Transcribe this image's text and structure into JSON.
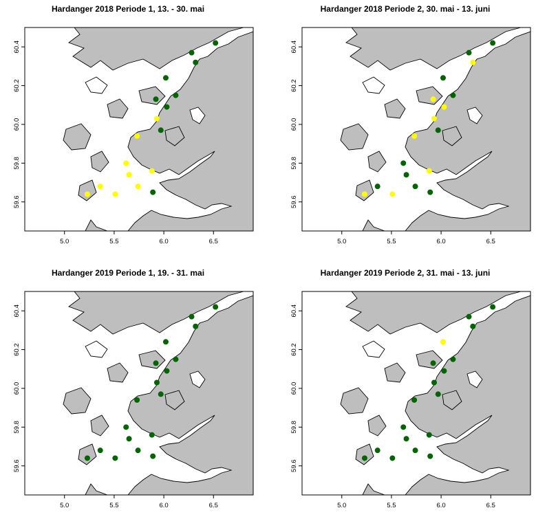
{
  "panels": [
    {
      "title": "Hardanger 2018 Periode 1, 13. - 30. mai",
      "sites": [
        {
          "lon": 6.52,
          "lat": 60.42,
          "color": "#006400"
        },
        {
          "lon": 6.28,
          "lat": 60.37,
          "color": "#006400"
        },
        {
          "lon": 6.32,
          "lat": 60.32,
          "color": "#006400"
        },
        {
          "lon": 6.02,
          "lat": 60.24,
          "color": "#006400"
        },
        {
          "lon": 6.12,
          "lat": 60.15,
          "color": "#006400"
        },
        {
          "lon": 5.92,
          "lat": 60.13,
          "color": "#006400"
        },
        {
          "lon": 6.03,
          "lat": 60.09,
          "color": "#006400"
        },
        {
          "lon": 5.93,
          "lat": 60.03,
          "color": "#ffff00"
        },
        {
          "lon": 5.97,
          "lat": 59.97,
          "color": "#006400"
        },
        {
          "lon": 5.73,
          "lat": 59.94,
          "color": "#ffff00"
        },
        {
          "lon": 5.62,
          "lat": 59.8,
          "color": "#ffff00"
        },
        {
          "lon": 5.88,
          "lat": 59.76,
          "color": "#ffff00"
        },
        {
          "lon": 5.65,
          "lat": 59.74,
          "color": "#ffff00"
        },
        {
          "lon": 5.36,
          "lat": 59.68,
          "color": "#ffff00"
        },
        {
          "lon": 5.74,
          "lat": 59.68,
          "color": "#ffff00"
        },
        {
          "lon": 5.89,
          "lat": 59.65,
          "color": "#006400"
        },
        {
          "lon": 5.23,
          "lat": 59.64,
          "color": "#ffff00"
        },
        {
          "lon": 5.51,
          "lat": 59.64,
          "color": "#ffff00"
        }
      ]
    },
    {
      "title": "Hardanger 2018 Periode 2, 30. mai - 13. juni",
      "sites": [
        {
          "lon": 6.52,
          "lat": 60.42,
          "color": "#006400"
        },
        {
          "lon": 6.28,
          "lat": 60.37,
          "color": "#006400"
        },
        {
          "lon": 6.32,
          "lat": 60.32,
          "color": "#ffff00"
        },
        {
          "lon": 6.02,
          "lat": 60.24,
          "color": "#006400"
        },
        {
          "lon": 6.12,
          "lat": 60.15,
          "color": "#006400"
        },
        {
          "lon": 5.92,
          "lat": 60.13,
          "color": "#ffff00"
        },
        {
          "lon": 6.03,
          "lat": 60.09,
          "color": "#ffff00"
        },
        {
          "lon": 5.93,
          "lat": 60.03,
          "color": "#ffff00"
        },
        {
          "lon": 5.97,
          "lat": 59.97,
          "color": "#006400"
        },
        {
          "lon": 5.73,
          "lat": 59.94,
          "color": "#ffff00"
        },
        {
          "lon": 5.62,
          "lat": 59.8,
          "color": "#006400"
        },
        {
          "lon": 5.88,
          "lat": 59.76,
          "color": "#ffff00"
        },
        {
          "lon": 5.65,
          "lat": 59.74,
          "color": "#006400"
        },
        {
          "lon": 5.36,
          "lat": 59.68,
          "color": "#006400"
        },
        {
          "lon": 5.74,
          "lat": 59.68,
          "color": "#006400"
        },
        {
          "lon": 5.89,
          "lat": 59.65,
          "color": "#006400"
        },
        {
          "lon": 5.23,
          "lat": 59.64,
          "color": "#ffff00"
        },
        {
          "lon": 5.51,
          "lat": 59.64,
          "color": "#ffff00"
        }
      ]
    },
    {
      "title": "Hardanger 2019 Periode 1, 19. - 31. mai",
      "sites": [
        {
          "lon": 6.52,
          "lat": 60.42,
          "color": "#006400"
        },
        {
          "lon": 6.28,
          "lat": 60.37,
          "color": "#006400"
        },
        {
          "lon": 6.32,
          "lat": 60.32,
          "color": "#006400"
        },
        {
          "lon": 6.02,
          "lat": 60.24,
          "color": "#006400"
        },
        {
          "lon": 6.12,
          "lat": 60.15,
          "color": "#006400"
        },
        {
          "lon": 5.92,
          "lat": 60.13,
          "color": "#006400"
        },
        {
          "lon": 6.03,
          "lat": 60.09,
          "color": "#006400"
        },
        {
          "lon": 5.93,
          "lat": 60.03,
          "color": "#006400"
        },
        {
          "lon": 5.97,
          "lat": 59.97,
          "color": "#006400"
        },
        {
          "lon": 5.73,
          "lat": 59.94,
          "color": "#006400"
        },
        {
          "lon": 5.62,
          "lat": 59.8,
          "color": "#006400"
        },
        {
          "lon": 5.88,
          "lat": 59.76,
          "color": "#006400"
        },
        {
          "lon": 5.65,
          "lat": 59.74,
          "color": "#006400"
        },
        {
          "lon": 5.36,
          "lat": 59.68,
          "color": "#006400"
        },
        {
          "lon": 5.74,
          "lat": 59.68,
          "color": "#006400"
        },
        {
          "lon": 5.89,
          "lat": 59.65,
          "color": "#006400"
        },
        {
          "lon": 5.23,
          "lat": 59.64,
          "color": "#006400"
        },
        {
          "lon": 5.51,
          "lat": 59.64,
          "color": "#006400"
        }
      ]
    },
    {
      "title": "Hardanger 2019 Periode 2, 31. mai - 13. juni",
      "sites": [
        {
          "lon": 6.52,
          "lat": 60.42,
          "color": "#006400"
        },
        {
          "lon": 6.28,
          "lat": 60.37,
          "color": "#006400"
        },
        {
          "lon": 6.32,
          "lat": 60.32,
          "color": "#006400"
        },
        {
          "lon": 6.02,
          "lat": 60.24,
          "color": "#ffff00"
        },
        {
          "lon": 6.12,
          "lat": 60.15,
          "color": "#006400"
        },
        {
          "lon": 5.92,
          "lat": 60.13,
          "color": "#006400"
        },
        {
          "lon": 6.03,
          "lat": 60.09,
          "color": "#006400"
        },
        {
          "lon": 5.93,
          "lat": 60.03,
          "color": "#006400"
        },
        {
          "lon": 5.97,
          "lat": 59.97,
          "color": "#006400"
        },
        {
          "lon": 5.73,
          "lat": 59.94,
          "color": "#006400"
        },
        {
          "lon": 5.62,
          "lat": 59.8,
          "color": "#006400"
        },
        {
          "lon": 5.88,
          "lat": 59.76,
          "color": "#006400"
        },
        {
          "lon": 5.65,
          "lat": 59.74,
          "color": "#006400"
        },
        {
          "lon": 5.36,
          "lat": 59.68,
          "color": "#006400"
        },
        {
          "lon": 5.74,
          "lat": 59.68,
          "color": "#006400"
        },
        {
          "lon": 5.89,
          "lat": 59.65,
          "color": "#006400"
        },
        {
          "lon": 5.23,
          "lat": 59.64,
          "color": "#006400"
        },
        {
          "lon": 5.51,
          "lat": 59.64,
          "color": "#006400"
        }
      ]
    }
  ],
  "axes": {
    "x_ticks": [
      "5.0",
      "5.5",
      "6.0",
      "6.5"
    ],
    "y_ticks": [
      "59.6",
      "59.8",
      "60.0",
      "60.2",
      "60.4"
    ],
    "x_values": [
      5.0,
      5.5,
      6.0,
      6.5
    ],
    "y_values": [
      59.6,
      59.8,
      60.0,
      60.2,
      60.4
    ],
    "xlim": [
      4.6,
      6.9
    ],
    "ylim": [
      59.45,
      60.5
    ]
  },
  "colors": {
    "land": "#bebebe",
    "sea": "#ffffff",
    "site_green": "#006400",
    "site_yellow": "#ffff00"
  }
}
